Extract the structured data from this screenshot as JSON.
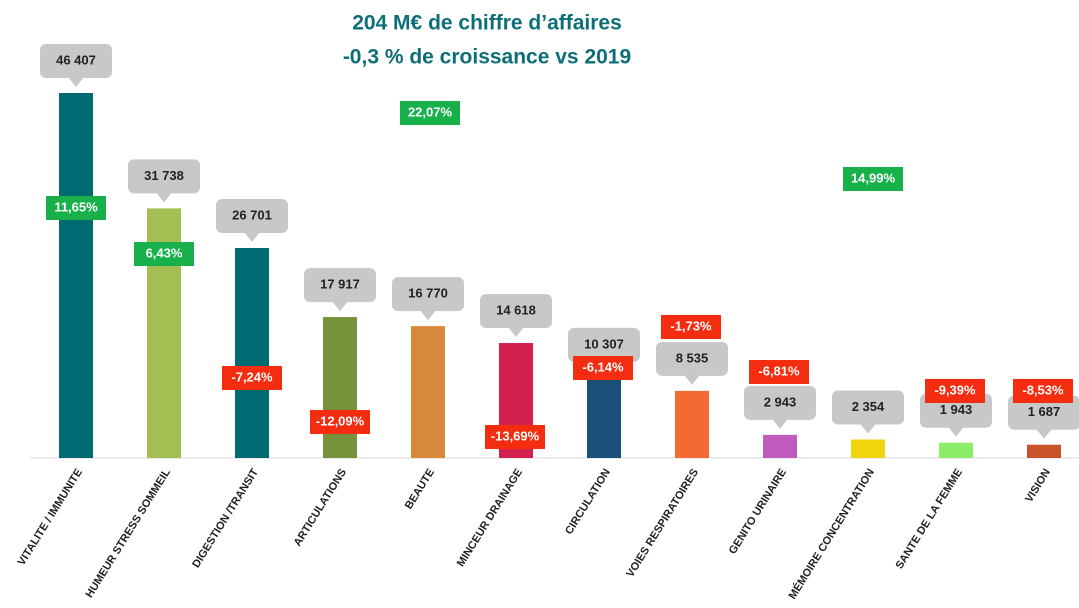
{
  "chart_data": {
    "type": "bar",
    "title": [
      "204 M€ de chiffre d’affaires",
      "-0,3 % de croissance vs 2019"
    ],
    "categories": [
      "VITALITE / IMMUNITE",
      "HUMEUR STRESS SOMMEIL",
      "DIGESTION /TRANSIT",
      "ARTICULATIONS",
      "BEAUTE",
      "MINCEUR DRAINAGE",
      "CIRCULATION",
      "VOIES RESPIRATOIRES",
      "GENITO URINAIRE",
      "MÉMOIRE CONCENTRATION",
      "SANTE DE LA FEMME",
      "VISION"
    ],
    "values": [
      46407,
      31738,
      26701,
      17917,
      16770,
      14618,
      10307,
      8535,
      2943,
      2354,
      1943,
      1687
    ],
    "value_labels": [
      "46 407",
      "31 738",
      "26 701",
      "17 917",
      "16 770",
      "14 618",
      "10 307",
      "8 535",
      "2 943",
      "2 354",
      "1 943",
      "1 687"
    ],
    "growth": [
      11.65,
      6.43,
      -7.24,
      -12.09,
      22.07,
      -13.69,
      -6.14,
      -1.73,
      -6.81,
      14.99,
      -9.39,
      -8.53
    ],
    "growth_labels": [
      "11,65%",
      "6,43%",
      "-7,24%",
      "-12,09%",
      "22,07%",
      "-13,69%",
      "-6,14%",
      "-1,73%",
      "-6,81%",
      "14,99%",
      "-9,39%",
      "-8,53%"
    ],
    "colors": [
      "#006a72",
      "#a3bf53",
      "#006a72",
      "#76923a",
      "#d8883a",
      "#d4204f",
      "#1c4f78",
      "#f26a34",
      "#bf5bbf",
      "#f2d40f",
      "#8ced6a",
      "#c9542a"
    ]
  }
}
